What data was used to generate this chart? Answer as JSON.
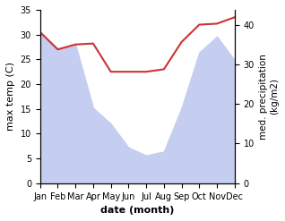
{
  "months": [
    "Jan",
    "Feb",
    "Mar",
    "Apr",
    "May",
    "Jun",
    "Jul",
    "Aug",
    "Sep",
    "Oct",
    "Nov",
    "Dec"
  ],
  "temp": [
    30.5,
    27.0,
    28.0,
    28.2,
    22.5,
    22.5,
    22.5,
    23.0,
    28.5,
    32.0,
    32.2,
    33.5
  ],
  "precip_raw": [
    380,
    340,
    350,
    190,
    150,
    90,
    70,
    80,
    190,
    330,
    370,
    310
  ],
  "temp_color": "#cc3333",
  "precip_fill_color": "#c5cdf0",
  "left_ylabel": "max temp (C)",
  "right_ylabel": "med. precipitation\n(kg/m2)",
  "xlabel": "date (month)",
  "ylim_left": [
    0,
    35
  ],
  "ylim_right": [
    0,
    437.5
  ],
  "yticks_left": [
    0,
    5,
    10,
    15,
    20,
    25,
    30,
    35
  ],
  "yticks_right": [
    0,
    100,
    200,
    300,
    400
  ],
  "ytick_right_labels": [
    "0",
    "10",
    "20",
    "30",
    "40"
  ],
  "background_color": "#ffffff"
}
